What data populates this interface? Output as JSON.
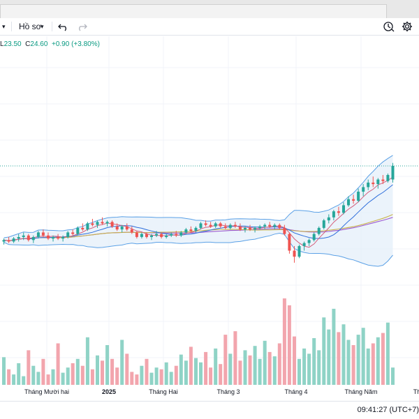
{
  "toolbar": {
    "left_caret": "▾",
    "profile_label": "Hồ sơ",
    "profile_caret": "▾",
    "undo_icon": "undo-icon",
    "redo_icon": "redo-icon",
    "replay_icon": "replay-clock-icon",
    "settings_icon": "gear-icon"
  },
  "ohlc": {
    "low_key": "L",
    "low_value": "23.50",
    "close_key": "C",
    "close_value": "24.60",
    "change": "+0.90 (+3.80%)"
  },
  "colors": {
    "up": "#26a69a",
    "down": "#ef5350",
    "volume_up": "#8fd3c6",
    "volume_down": "#f2a5ad",
    "bb_line": "#5aa0e6",
    "bb_fill": "#e3eef9",
    "ma_fast": "#d45d7a",
    "ma_mid": "#2f6fdb",
    "ma_slow": "#c9b24a",
    "ma_long": "#9b59d0",
    "last_price_line": "#26a69a"
  },
  "time_axis": {
    "labels": [
      {
        "text": "Tháng Mười hai",
        "bold": false
      },
      {
        "text": "2025",
        "bold": true
      },
      {
        "text": "Tháng Hai",
        "bold": false
      },
      {
        "text": "Tháng 3",
        "bold": false
      },
      {
        "text": "Tháng 4",
        "bold": false
      },
      {
        "text": "Tháng Năm",
        "bold": false
      },
      {
        "text": "Th",
        "bold": false
      }
    ]
  },
  "status": {
    "time": "09:41:27 (UTC+7)"
  },
  "chart_data": {
    "type": "candlestick",
    "last_close": 24.6,
    "price_range": [
      17.5,
      25.8
    ],
    "volume_max": 100,
    "candles": [
      [
        19.6,
        19.8,
        19.4,
        19.7
      ],
      [
        19.7,
        19.9,
        19.5,
        19.6
      ],
      [
        19.6,
        19.9,
        19.5,
        19.8
      ],
      [
        19.8,
        20.1,
        19.6,
        19.9
      ],
      [
        19.9,
        20.2,
        19.7,
        20.0
      ],
      [
        20.0,
        20.1,
        19.6,
        19.7
      ],
      [
        19.7,
        20.0,
        19.5,
        19.9
      ],
      [
        19.9,
        20.3,
        19.8,
        20.2
      ],
      [
        20.2,
        20.4,
        19.9,
        20.0
      ],
      [
        20.0,
        20.2,
        19.7,
        19.8
      ],
      [
        19.8,
        20.0,
        19.6,
        19.9
      ],
      [
        19.9,
        20.1,
        19.7,
        19.8
      ],
      [
        19.8,
        20.0,
        19.6,
        19.9
      ],
      [
        19.9,
        20.3,
        19.8,
        20.2
      ],
      [
        20.2,
        20.4,
        20.0,
        20.1
      ],
      [
        20.1,
        20.6,
        20.0,
        20.5
      ],
      [
        20.5,
        20.8,
        20.3,
        20.4
      ],
      [
        20.4,
        20.9,
        20.3,
        20.8
      ],
      [
        20.8,
        21.1,
        20.6,
        20.7
      ],
      [
        20.7,
        21.0,
        20.5,
        20.9
      ],
      [
        20.9,
        21.2,
        20.7,
        20.8
      ],
      [
        20.8,
        21.0,
        20.6,
        20.9
      ],
      [
        20.9,
        21.0,
        20.5,
        20.6
      ],
      [
        20.6,
        20.8,
        20.3,
        20.4
      ],
      [
        20.4,
        20.7,
        20.2,
        20.6
      ],
      [
        20.6,
        20.8,
        20.3,
        20.4
      ],
      [
        20.4,
        20.6,
        20.1,
        20.2
      ],
      [
        20.2,
        20.3,
        19.8,
        19.9
      ],
      [
        19.9,
        20.2,
        19.8,
        20.1
      ],
      [
        20.1,
        20.2,
        19.8,
        19.9
      ],
      [
        19.9,
        20.1,
        19.7,
        20.0
      ],
      [
        20.0,
        20.3,
        19.9,
        20.1
      ],
      [
        20.1,
        20.2,
        19.8,
        19.9
      ],
      [
        19.9,
        20.1,
        19.8,
        20.0
      ],
      [
        20.0,
        20.2,
        19.9,
        20.1
      ],
      [
        20.1,
        20.3,
        19.9,
        20.0
      ],
      [
        20.0,
        20.3,
        19.9,
        20.2
      ],
      [
        20.2,
        20.5,
        20.1,
        20.4
      ],
      [
        20.4,
        20.6,
        20.2,
        20.3
      ],
      [
        20.3,
        20.6,
        20.2,
        20.5
      ],
      [
        20.5,
        20.9,
        20.4,
        20.8
      ],
      [
        20.8,
        21.0,
        20.6,
        20.7
      ],
      [
        20.7,
        20.9,
        20.5,
        20.6
      ],
      [
        20.6,
        20.9,
        20.5,
        20.8
      ],
      [
        20.8,
        20.9,
        20.5,
        20.6
      ],
      [
        20.6,
        20.8,
        20.4,
        20.5
      ],
      [
        20.5,
        20.8,
        20.4,
        20.7
      ],
      [
        20.7,
        20.9,
        20.5,
        20.6
      ],
      [
        20.6,
        20.8,
        20.3,
        20.4
      ],
      [
        20.4,
        20.6,
        20.2,
        20.5
      ],
      [
        20.5,
        20.7,
        20.3,
        20.4
      ],
      [
        20.4,
        20.6,
        20.2,
        20.5
      ],
      [
        20.5,
        20.7,
        20.4,
        20.6
      ],
      [
        20.6,
        20.8,
        20.4,
        20.7
      ],
      [
        20.7,
        20.9,
        20.5,
        20.6
      ],
      [
        20.6,
        20.8,
        20.4,
        20.7
      ],
      [
        20.7,
        20.8,
        20.4,
        20.5
      ],
      [
        20.5,
        20.7,
        20.0,
        20.1
      ],
      [
        20.1,
        20.2,
        18.8,
        19.0
      ],
      [
        19.0,
        19.3,
        18.2,
        18.6
      ],
      [
        18.6,
        19.4,
        18.5,
        19.3
      ],
      [
        19.3,
        19.6,
        19.0,
        19.5
      ],
      [
        19.5,
        19.8,
        19.3,
        19.7
      ],
      [
        19.7,
        20.2,
        19.6,
        20.1
      ],
      [
        20.1,
        20.6,
        20.0,
        20.5
      ],
      [
        20.5,
        21.1,
        20.4,
        21.0
      ],
      [
        21.0,
        21.4,
        20.8,
        21.2
      ],
      [
        21.2,
        21.7,
        21.0,
        21.6
      ],
      [
        21.6,
        21.9,
        21.3,
        21.5
      ],
      [
        21.5,
        22.2,
        21.4,
        22.0
      ],
      [
        22.0,
        22.6,
        21.9,
        22.4
      ],
      [
        22.4,
        22.7,
        22.1,
        22.3
      ],
      [
        22.3,
        23.1,
        22.2,
        22.9
      ],
      [
        22.9,
        23.4,
        22.6,
        23.2
      ],
      [
        23.2,
        23.7,
        23.0,
        23.5
      ],
      [
        23.5,
        23.9,
        23.2,
        23.4
      ],
      [
        23.4,
        23.8,
        23.1,
        23.7
      ],
      [
        23.7,
        24.0,
        23.4,
        23.6
      ],
      [
        23.6,
        24.1,
        23.5,
        24.0
      ],
      [
        23.7,
        24.8,
        23.5,
        24.6
      ]
    ],
    "volume": [
      32,
      18,
      12,
      25,
      10,
      40,
      22,
      15,
      30,
      12,
      18,
      48,
      14,
      20,
      25,
      30,
      22,
      55,
      18,
      34,
      28,
      46,
      30,
      20,
      52,
      36,
      15,
      12,
      22,
      30,
      14,
      20,
      18,
      26,
      15,
      22,
      35,
      28,
      44,
      31,
      26,
      38,
      20,
      42,
      24,
      58,
      36,
      62,
      28,
      40,
      34,
      45,
      30,
      51,
      38,
      33,
      48,
      100,
      92,
      56,
      30,
      42,
      36,
      54,
      40,
      78,
      64,
      88,
      61,
      70,
      52,
      46,
      58,
      66,
      42,
      48,
      55,
      60,
      72,
      20
    ]
  }
}
